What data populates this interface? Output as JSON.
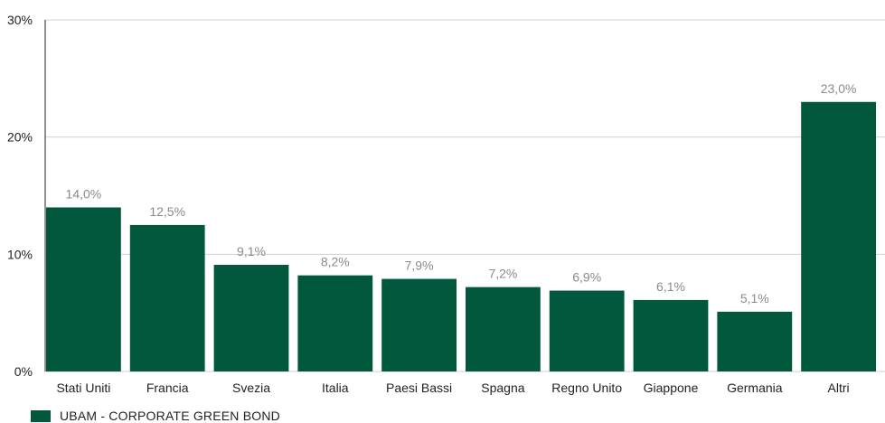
{
  "chart_data": {
    "type": "bar",
    "categories": [
      "Stati Uniti",
      "Francia",
      "Svezia",
      "Italia",
      "Paesi Bassi",
      "Spagna",
      "Regno Unito",
      "Giappone",
      "Germania",
      "Altri"
    ],
    "series": [
      {
        "name": "UBAM - CORPORATE GREEN BOND",
        "values": [
          14.0,
          12.5,
          9.1,
          8.2,
          7.9,
          7.2,
          6.9,
          6.1,
          5.1,
          23.0
        ],
        "labels": [
          "14,0%",
          "12,5%",
          "9,1%",
          "8,2%",
          "7,9%",
          "7,2%",
          "6,9%",
          "6,1%",
          "5,1%",
          "23,0%"
        ]
      }
    ],
    "yticks": [
      0,
      10,
      20,
      30
    ],
    "ytick_labels": [
      "0%",
      "10%",
      "20%",
      "30%"
    ],
    "ylim": [
      0,
      30
    ],
    "grid": true,
    "legend_position": "bottom-left",
    "bar_color": "#01583d"
  }
}
